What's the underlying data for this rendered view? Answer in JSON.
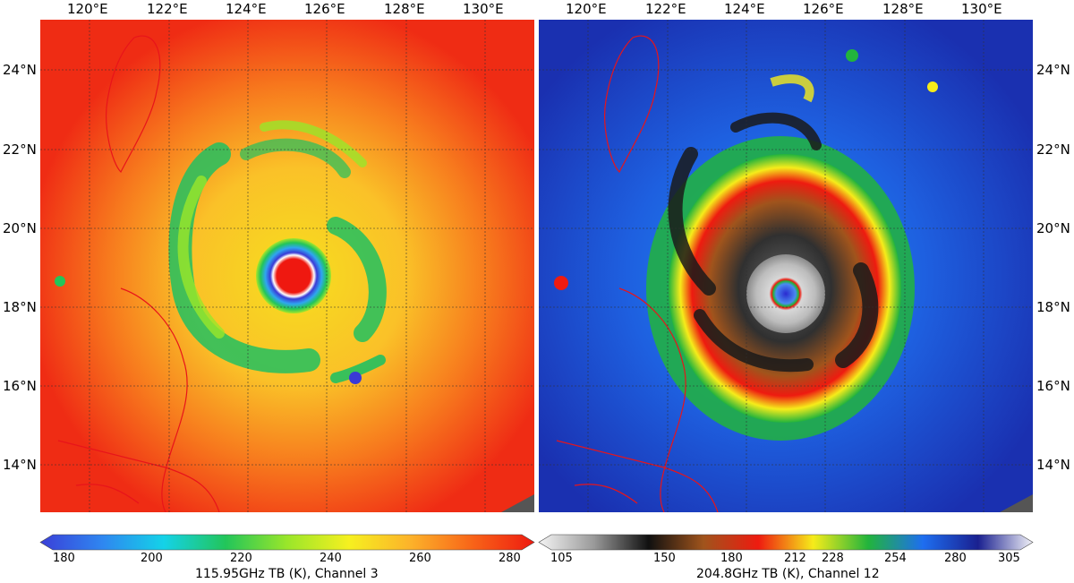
{
  "left_panel": {
    "lon_labels": [
      "120°E",
      "122°E",
      "124°E",
      "126°E",
      "128°E",
      "130°E"
    ],
    "lat_labels": [
      "24°N",
      "22°N",
      "20°N",
      "18°N",
      "16°N",
      "14°N"
    ],
    "colorbar": {
      "title": "115.95GHz TB (K), Channel 3",
      "ticks": [
        "180",
        "200",
        "220",
        "240",
        "260",
        "280"
      ],
      "stops": [
        "#3a3fd8",
        "#2f86f0",
        "#14d2e8",
        "#22c55a",
        "#9ae62a",
        "#f6f020",
        "#fcb22a",
        "#f86418",
        "#ee1a10"
      ]
    }
  },
  "right_panel": {
    "lon_labels": [
      "120°E",
      "122°E",
      "124°E",
      "126°E",
      "128°E",
      "130°E"
    ],
    "lat_labels": [
      "24°N",
      "22°N",
      "20°N",
      "18°N",
      "16°N",
      "14°N"
    ],
    "colorbar": {
      "title": "204.8GHz TB (K), Channel 12",
      "ticks": [
        "105",
        "150",
        "180",
        "212",
        "228",
        "254",
        "280",
        "305"
      ],
      "stops": [
        "#f4f4f4",
        "#9a9a9a",
        "#101010",
        "#a0541c",
        "#ee1b10",
        "#f6ec1a",
        "#22b43c",
        "#1e6ef0",
        "#1a2090",
        "#f2f2f8"
      ]
    }
  },
  "map_colors": {
    "coastline": "#e8141a",
    "gridline": "#303030"
  }
}
